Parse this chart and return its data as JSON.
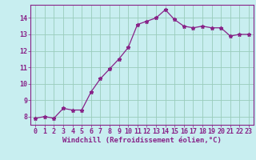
{
  "x": [
    0,
    1,
    2,
    3,
    4,
    5,
    6,
    7,
    8,
    9,
    10,
    11,
    12,
    13,
    14,
    15,
    16,
    17,
    18,
    19,
    20,
    21,
    22,
    23
  ],
  "y": [
    7.9,
    8.0,
    7.9,
    8.5,
    8.4,
    8.4,
    9.5,
    10.3,
    10.9,
    11.5,
    12.2,
    13.6,
    13.8,
    14.0,
    14.5,
    13.9,
    13.5,
    13.4,
    13.5,
    13.4,
    13.4,
    12.9,
    13.0,
    13.0
  ],
  "line_color": "#882288",
  "marker": "*",
  "bg_color": "#c8eef0",
  "grid_color": "#99ccbb",
  "xlabel": "Windchill (Refroidissement éolien,°C)",
  "xlabel_color": "#882288",
  "tick_color": "#882288",
  "spine_color": "#882288",
  "xlim": [
    -0.5,
    23.5
  ],
  "ylim": [
    7.5,
    14.8
  ],
  "yticks": [
    8,
    9,
    10,
    11,
    12,
    13,
    14
  ],
  "xticks": [
    0,
    1,
    2,
    3,
    4,
    5,
    6,
    7,
    8,
    9,
    10,
    11,
    12,
    13,
    14,
    15,
    16,
    17,
    18,
    19,
    20,
    21,
    22,
    23
  ],
  "tick_fontsize": 6.0,
  "xlabel_fontsize": 6.5,
  "linewidth": 0.9,
  "markersize": 3.5
}
